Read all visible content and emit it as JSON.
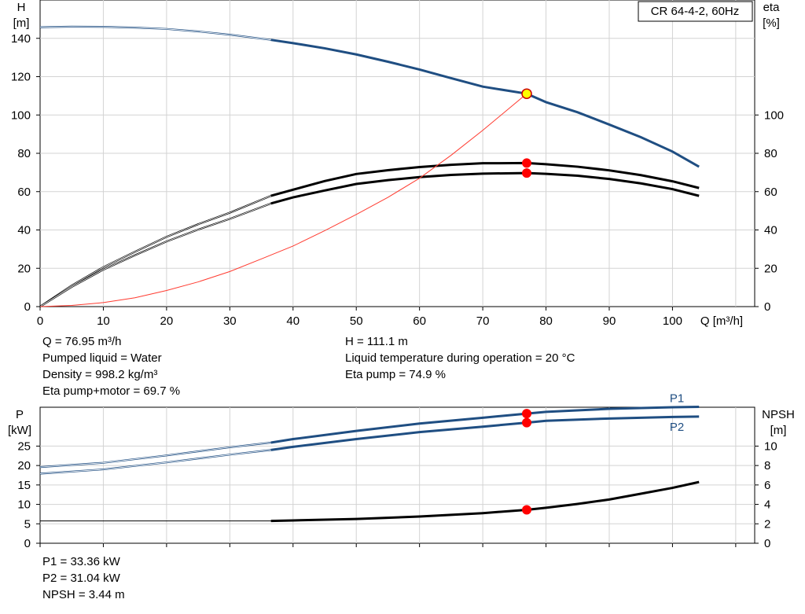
{
  "chart_data": [
    {
      "type": "line",
      "title": "CR 64-4-2, 60Hz",
      "xlabel": "Q [m³/h]",
      "x_ticks": [
        0,
        10,
        20,
        30,
        40,
        50,
        60,
        70,
        80,
        90,
        100
      ],
      "xlim": [
        0,
        113
      ],
      "ylabel_left": [
        "H",
        "[m]"
      ],
      "ylim_left": [
        0,
        160
      ],
      "y_ticks_left": [
        0,
        20,
        40,
        60,
        80,
        100,
        120,
        140
      ],
      "ylabel_right": [
        "eta",
        "[%]"
      ],
      "ylim_right": [
        0,
        160
      ],
      "y_ticks_right": [
        0,
        20,
        40,
        60,
        80,
        100
      ],
      "grid": true,
      "series": [
        {
          "key": "H",
          "color": "#1f4e82",
          "axis": "left",
          "operating_from": 36.5,
          "x": [
            0,
            5,
            10,
            15,
            20,
            25,
            30,
            36.5,
            40,
            45,
            50,
            55,
            60,
            65,
            70,
            76.95,
            80,
            85,
            90,
            95,
            100,
            104.2
          ],
          "y": [
            145.8,
            146.1,
            146.0,
            145.6,
            144.9,
            143.6,
            141.9,
            139.2,
            137.5,
            134.8,
            131.6,
            127.8,
            123.7,
            119.2,
            114.8,
            111.1,
            106.7,
            101.4,
            95.0,
            88.4,
            80.9,
            73.0
          ]
        },
        {
          "key": "eta_pump",
          "color": "#000000",
          "axis": "right",
          "operating_from": 36.5,
          "x": [
            0,
            5,
            10,
            15,
            20,
            25,
            30,
            36.5,
            40,
            45,
            50,
            55,
            60,
            65,
            70,
            76.95,
            80,
            85,
            90,
            95,
            100,
            104.2
          ],
          "y": [
            0,
            11.0,
            20.6,
            28.6,
            36.4,
            43.0,
            49.0,
            57.8,
            61.0,
            65.5,
            69.2,
            71.2,
            72.8,
            74.0,
            74.8,
            74.9,
            74.3,
            73.0,
            71.1,
            68.6,
            65.4,
            61.9
          ]
        },
        {
          "key": "eta_pump_motor",
          "color": "#000000",
          "axis": "right",
          "operating_from": 36.5,
          "x": [
            0,
            5,
            10,
            15,
            20,
            25,
            30,
            36.5,
            40,
            45,
            50,
            55,
            60,
            65,
            70,
            76.95,
            80,
            85,
            90,
            95,
            100,
            104.2
          ],
          "y": [
            0,
            10.3,
            19.3,
            26.8,
            34.0,
            40.2,
            45.8,
            53.8,
            57.0,
            60.6,
            64.0,
            66.0,
            67.6,
            68.7,
            69.4,
            69.7,
            69.3,
            68.3,
            66.6,
            64.3,
            61.3,
            57.8
          ]
        },
        {
          "key": "system_curve",
          "color": "#ff3b30",
          "axis": "left",
          "x": [
            0,
            5,
            10,
            15,
            20,
            25,
            30,
            35,
            40,
            45,
            50,
            55,
            60,
            65,
            70,
            76.95
          ],
          "y": [
            0,
            0.6,
            2.1,
            4.6,
            8.4,
            12.9,
            18.3,
            24.9,
            31.6,
            39.6,
            48.1,
            57.0,
            67.0,
            79.0,
            92.0,
            111.1
          ]
        }
      ],
      "operating_point": {
        "q": 76.95,
        "h": 111.1,
        "eta_pump": 74.9,
        "eta_pump_motor": 69.7
      }
    },
    {
      "type": "line",
      "xlim": [
        0,
        113
      ],
      "ylabel_left": [
        "P",
        "[kW]"
      ],
      "ylim_left": [
        0,
        35
      ],
      "y_ticks_left": [
        0,
        5,
        10,
        15,
        20,
        25
      ],
      "ylabel_right": [
        "NPSH",
        "[m]"
      ],
      "ylim_right": [
        0,
        14
      ],
      "y_ticks_right": [
        0,
        2,
        4,
        6,
        8,
        10
      ],
      "grid": true,
      "series": [
        {
          "key": "P1",
          "name": "P1",
          "color": "#1f4e82",
          "axis": "left",
          "operating_from": 36.5,
          "x": [
            0,
            10,
            20,
            30,
            36.5,
            40,
            50,
            60,
            70,
            76.95,
            80,
            90,
            100,
            104.2
          ],
          "y": [
            19.6,
            20.7,
            22.6,
            24.7,
            25.9,
            26.8,
            28.9,
            30.8,
            32.3,
            33.36,
            33.8,
            34.6,
            35.0,
            35.1
          ]
        },
        {
          "key": "P2",
          "name": "P2",
          "color": "#1f4e82",
          "axis": "left",
          "operating_from": 36.5,
          "x": [
            0,
            10,
            20,
            30,
            36.5,
            40,
            50,
            60,
            70,
            76.95,
            80,
            90,
            100,
            104.2
          ],
          "y": [
            17.9,
            19.0,
            20.8,
            22.8,
            24.0,
            24.8,
            26.8,
            28.6,
            30.0,
            31.04,
            31.5,
            32.1,
            32.5,
            32.6
          ]
        },
        {
          "key": "NPSH",
          "color": "#000000",
          "axis": "right",
          "operating_from": 36.5,
          "x": [
            0,
            36.5,
            40,
            50,
            60,
            70,
            76.95,
            80,
            85,
            90,
            95,
            100,
            104.2
          ],
          "y": [
            2.3,
            2.3,
            2.35,
            2.5,
            2.75,
            3.1,
            3.44,
            3.65,
            4.05,
            4.5,
            5.1,
            5.7,
            6.3
          ]
        }
      ],
      "operating_point": {
        "q": 76.95,
        "p1": 33.36,
        "p2": 31.04,
        "npsh": 3.44
      }
    }
  ],
  "info_top_left": [
    "Q = 76.95 m³/h",
    "Pumped liquid = Water",
    "Density = 998.2 kg/m³",
    "Eta pump+motor = 69.7 %"
  ],
  "info_top_right": [
    "H = 111.1 m",
    "Liquid temperature during operation = 20 °C",
    "Eta pump = 74.9 %"
  ],
  "info_bottom": [
    "P1 = 33.36 kW",
    "P2 = 31.04 kW",
    "NPSH = 3.44 m"
  ],
  "colors": {
    "curve_blue": "#1f4e82",
    "operating_point_red": "#ff0000",
    "duty_point_yellow": "#ffff00",
    "grid": "#d3d3d3"
  }
}
